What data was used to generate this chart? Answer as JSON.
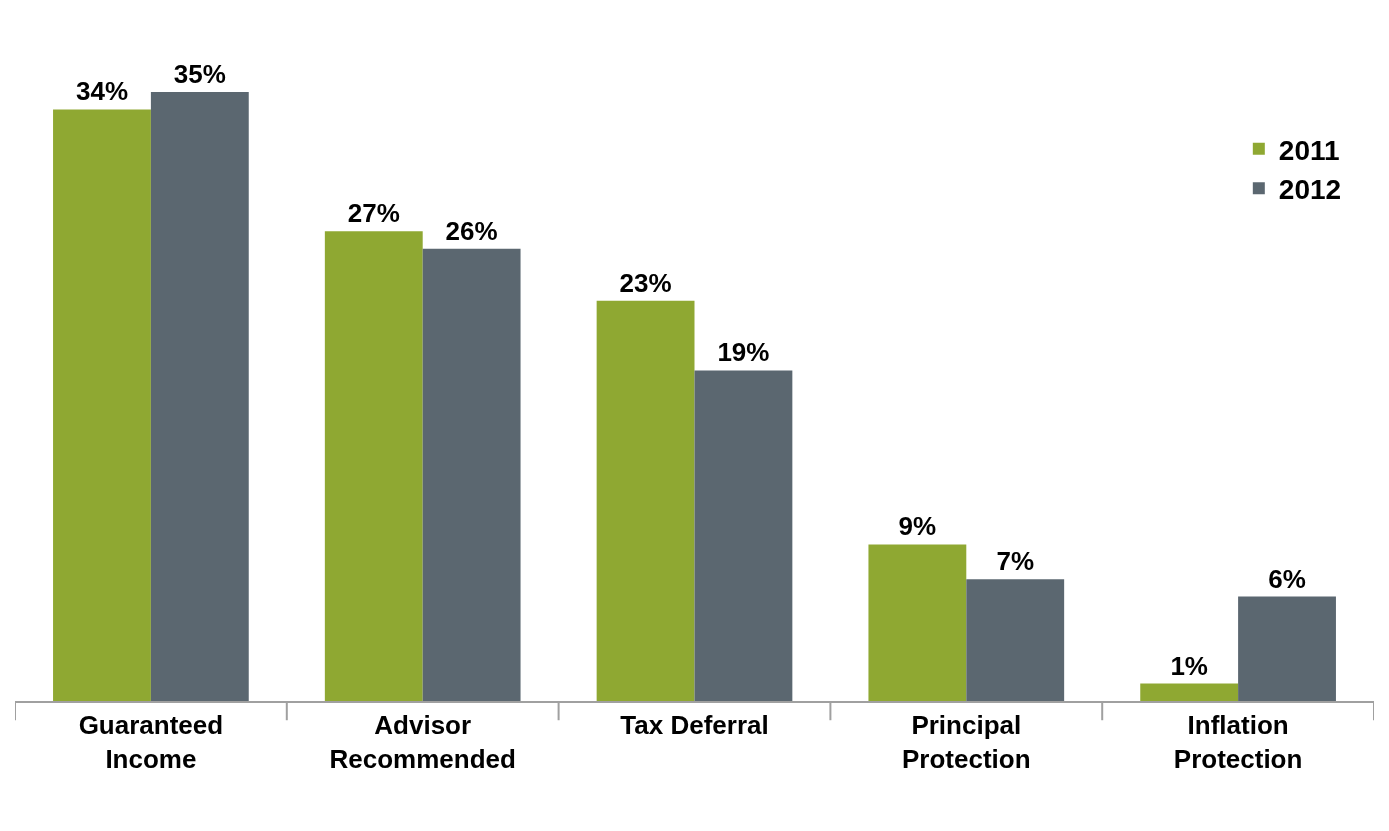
{
  "chart_data": {
    "type": "bar",
    "categories": [
      "Guaranteed\nIncome",
      "Advisor\nRecommended",
      "Tax Deferral",
      "Principal\nProtection",
      "Inflation\nProtection"
    ],
    "series": [
      {
        "name": "2011",
        "color": "#8fa832",
        "values": [
          34,
          27,
          23,
          9,
          1
        ],
        "value_labels": [
          "34%",
          "27%",
          "23%",
          "9%",
          "1%"
        ]
      },
      {
        "name": "2012",
        "color": "#5b6770",
        "values": [
          35,
          26,
          19,
          7,
          6
        ],
        "value_labels": [
          "35%",
          "26%",
          "19%",
          "7%",
          "6%"
        ]
      }
    ],
    "legend": "top right"
  }
}
